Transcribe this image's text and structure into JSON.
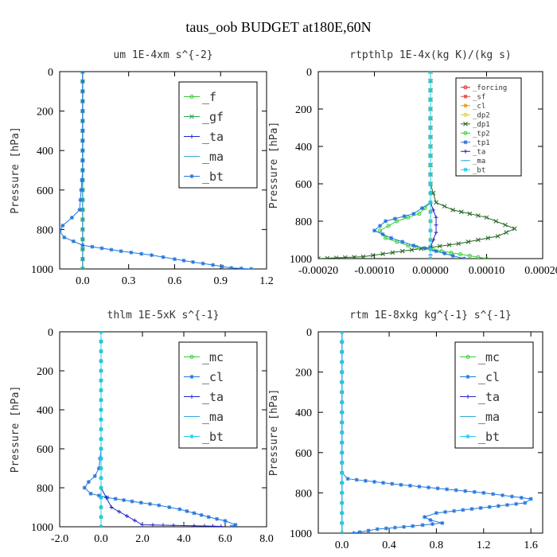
{
  "figure_title": "taus_oob  BUDGET at180E,60N",
  "chart_data": [
    {
      "type": "line",
      "title": "um  1E-4xm s^{-2}",
      "ylabel": "Pressure [hPa]",
      "xlim": [
        -0.15,
        1.2
      ],
      "ylim": [
        1000,
        0
      ],
      "xticks": [
        "0.0",
        "0.3",
        "0.6",
        "0.9",
        "1.2"
      ],
      "xtick_values": [
        0.0,
        0.3,
        0.6,
        0.9,
        1.2
      ],
      "yticks": [
        "0",
        "200",
        "400",
        "600",
        "800",
        "1000"
      ],
      "ytick_values": [
        0,
        200,
        400,
        600,
        800,
        1000
      ],
      "legend": "top-right",
      "legend_font": 15,
      "series": [
        {
          "name": "_f",
          "color": "#33cc33",
          "marker": "o",
          "x": [
            0,
            0,
            0,
            0,
            0,
            0,
            0,
            0,
            0,
            0,
            0
          ],
          "y": [
            0,
            100,
            200,
            300,
            400,
            500,
            600,
            700,
            800,
            900,
            1000
          ]
        },
        {
          "name": "_gf",
          "color": "#22aa55",
          "marker": "x",
          "x": [
            0,
            0,
            0,
            0,
            0,
            0,
            0,
            0,
            0,
            0,
            0
          ],
          "y": [
            0,
            100,
            200,
            300,
            400,
            500,
            600,
            700,
            800,
            900,
            1000
          ]
        },
        {
          "name": "_ta",
          "color": "#2222cc",
          "marker": "+",
          "x": [
            0,
            0,
            0,
            0,
            0,
            0,
            0,
            0,
            0,
            0,
            0
          ],
          "y": [
            0,
            100,
            200,
            300,
            400,
            500,
            600,
            700,
            800,
            900,
            1000
          ]
        },
        {
          "name": "_ma",
          "color": "#33aadd",
          "marker": "-",
          "x": [
            0,
            0,
            0,
            0,
            0,
            0,
            0,
            0,
            0,
            0,
            0
          ],
          "y": [
            0,
            100,
            200,
            300,
            400,
            500,
            600,
            700,
            800,
            900,
            1000
          ]
        },
        {
          "name": "_bt",
          "color": "#2277dd",
          "marker": "*",
          "x": [
            0,
            0,
            0,
            0,
            0,
            0,
            -0.01,
            -0.02,
            -0.07,
            -0.13,
            -0.15,
            -0.12,
            0.0,
            0.25,
            0.45,
            0.6,
            0.72,
            0.85,
            0.97,
            1.1
          ],
          "y": [
            0,
            100,
            200,
            300,
            400,
            500,
            600,
            700,
            740,
            780,
            810,
            840,
            880,
            910,
            930,
            950,
            965,
            980,
            995,
            1000
          ]
        }
      ]
    },
    {
      "type": "line",
      "title": "rtpthlp  1E-4x(kg K)/(kg s)",
      "ylabel": "Pressure [hPa]",
      "xlim": [
        -0.0002,
        0.0002
      ],
      "ylim": [
        1000,
        0
      ],
      "xticks": [
        "-0.00020",
        "-0.00010",
        "0.00000",
        "0.00010",
        "0.00020"
      ],
      "xtick_values": [
        -0.0002,
        -0.0001,
        0.0,
        0.0001,
        0.0002
      ],
      "yticks": [
        "0",
        "200",
        "400",
        "600",
        "800",
        "1000"
      ],
      "ytick_values": [
        0,
        200,
        400,
        600,
        800,
        1000
      ],
      "legend": "top-right",
      "legend_font": 9,
      "series": [
        {
          "name": "_forcing",
          "color": "#dd2222",
          "marker": "o",
          "x": [
            0,
            0,
            0,
            0,
            0,
            0,
            0,
            0,
            0,
            0,
            0
          ],
          "y": [
            0,
            100,
            200,
            300,
            400,
            500,
            600,
            700,
            800,
            900,
            1000
          ]
        },
        {
          "name": "_sf",
          "color": "#ee4444",
          "marker": "*",
          "x": [
            0,
            0,
            0,
            0,
            0,
            0,
            0,
            0,
            0,
            0,
            0
          ],
          "y": [
            0,
            100,
            200,
            300,
            400,
            500,
            600,
            700,
            800,
            900,
            1000
          ]
        },
        {
          "name": "_cl",
          "color": "#ee9922",
          "marker": "*",
          "x": [
            0,
            0,
            0,
            0,
            0,
            0,
            0,
            0,
            0,
            0,
            0
          ],
          "y": [
            0,
            100,
            200,
            300,
            400,
            500,
            600,
            700,
            800,
            900,
            1000
          ]
        },
        {
          "name": "_dp2",
          "color": "#ddcc22",
          "marker": "o",
          "x": [
            0,
            0,
            0,
            0,
            0,
            0,
            0,
            0,
            0,
            0,
            0
          ],
          "y": [
            0,
            100,
            200,
            300,
            400,
            500,
            600,
            700,
            800,
            900,
            1000
          ]
        },
        {
          "name": "_dp1",
          "color": "#226622",
          "marker": "x",
          "x": [
            0,
            0,
            0,
            0,
            0,
            0,
            0,
            1e-05,
            4e-05,
            0.0001,
            0.00015,
            0.00012,
            5e-05,
            -5e-05,
            -0.00012,
            -0.0002
          ],
          "y": [
            0,
            100,
            200,
            300,
            400,
            500,
            600,
            700,
            740,
            780,
            840,
            880,
            920,
            960,
            990,
            1000
          ]
        },
        {
          "name": "_tp2",
          "color": "#33cc33",
          "marker": "o",
          "x": [
            0,
            0,
            0,
            0,
            0,
            0,
            0,
            0,
            -2e-05,
            -6e-05,
            -9e-05,
            -8e-05,
            -4e-05,
            2e-05,
            7e-05,
            0.0001
          ],
          "y": [
            0,
            100,
            200,
            300,
            400,
            500,
            600,
            700,
            760,
            800,
            850,
            890,
            930,
            960,
            985,
            1000
          ]
        },
        {
          "name": "_tp1",
          "color": "#2277dd",
          "marker": "*",
          "x": [
            0,
            0,
            0,
            0,
            0,
            0,
            0,
            0,
            -3e-05,
            -8e-05,
            -0.0001,
            -7e-05,
            -3e-05,
            1e-05,
            4e-05,
            6e-05
          ],
          "y": [
            0,
            100,
            200,
            300,
            400,
            500,
            600,
            700,
            760,
            800,
            850,
            890,
            930,
            960,
            985,
            1000
          ]
        },
        {
          "name": "_ta",
          "color": "#2222cc",
          "marker": "+",
          "x": [
            0,
            0,
            0,
            0,
            0,
            0,
            0,
            0,
            1e-05,
            1e-05,
            5e-06,
            0,
            0,
            0
          ],
          "y": [
            0,
            100,
            200,
            300,
            400,
            500,
            600,
            700,
            780,
            860,
            900,
            940,
            980,
            1000
          ]
        },
        {
          "name": "_ma",
          "color": "#33aadd",
          "marker": "-",
          "x": [
            0,
            0,
            0,
            0,
            0,
            0,
            0,
            0,
            0,
            0,
            0
          ],
          "y": [
            0,
            100,
            200,
            300,
            400,
            500,
            600,
            700,
            800,
            900,
            1000
          ]
        },
        {
          "name": "_bt",
          "color": "#22ccee",
          "marker": "*",
          "x": [
            0,
            0,
            0,
            0,
            0,
            0,
            0,
            0,
            0,
            0,
            0
          ],
          "y": [
            0,
            100,
            200,
            300,
            400,
            500,
            600,
            700,
            800,
            900,
            1000
          ]
        }
      ]
    },
    {
      "type": "line",
      "title": "thlm  1E-5xK s^{-1}",
      "ylabel": "Pressure [hPa]",
      "xlim": [
        -2.0,
        8.0
      ],
      "ylim": [
        1000,
        0
      ],
      "xticks": [
        "-2.0",
        "0.0",
        "2.0",
        "4.0",
        "6.0",
        "8.0"
      ],
      "xtick_values": [
        -2.0,
        0.0,
        2.0,
        4.0,
        6.0,
        8.0
      ],
      "yticks": [
        "0",
        "200",
        "400",
        "600",
        "800",
        "1000"
      ],
      "ytick_values": [
        0,
        200,
        400,
        600,
        800,
        1000
      ],
      "legend": "top-right",
      "legend_font": 15,
      "series": [
        {
          "name": "_mc",
          "color": "#33cc33",
          "marker": "o",
          "x": [
            0,
            0,
            0,
            0,
            0,
            0,
            0,
            0,
            0,
            0,
            0
          ],
          "y": [
            0,
            100,
            200,
            300,
            400,
            500,
            600,
            700,
            800,
            900,
            1000
          ]
        },
        {
          "name": "_cl",
          "color": "#2277dd",
          "marker": "*",
          "x": [
            0,
            0,
            0,
            0,
            0,
            0,
            0,
            -0.1,
            -0.3,
            -0.6,
            -0.8,
            -0.5,
            0.3,
            1.5,
            2.8,
            3.8,
            4.5,
            5.2,
            6.0,
            6.5,
            6.3
          ],
          "y": [
            0,
            100,
            200,
            300,
            400,
            500,
            600,
            700,
            740,
            770,
            800,
            830,
            850,
            870,
            890,
            910,
            930,
            950,
            970,
            990,
            1000
          ]
        },
        {
          "name": "_ta",
          "color": "#2222cc",
          "marker": "+",
          "x": [
            0,
            0,
            0,
            0,
            0,
            0,
            0,
            0,
            0,
            0.5,
            2.0,
            3.5,
            5.0,
            5.8
          ],
          "y": [
            0,
            100,
            200,
            300,
            400,
            500,
            600,
            700,
            800,
            900,
            990,
            993,
            996,
            998
          ]
        },
        {
          "name": "_ma",
          "color": "#33aadd",
          "marker": "-",
          "x": [
            0,
            0,
            0,
            0,
            0,
            0,
            0,
            0,
            0,
            0,
            0
          ],
          "y": [
            0,
            100,
            200,
            300,
            400,
            500,
            600,
            700,
            800,
            900,
            1000
          ]
        },
        {
          "name": "_bt",
          "color": "#22ccee",
          "marker": "*",
          "x": [
            0,
            0,
            0,
            0,
            0,
            0,
            0,
            0,
            0,
            0,
            0
          ],
          "y": [
            0,
            100,
            200,
            300,
            400,
            500,
            600,
            700,
            800,
            900,
            1000
          ]
        }
      ]
    },
    {
      "type": "line",
      "title": "rtm  1E-8xkg kg^{-1} s^{-1}",
      "ylabel": "Pressure [hPa]",
      "xlim": [
        -0.2,
        1.7
      ],
      "ylim": [
        1000,
        0
      ],
      "xticks": [
        "0.0",
        "0.4",
        "0.8",
        "1.2",
        "1.6"
      ],
      "xtick_values": [
        0.0,
        0.4,
        0.8,
        1.2,
        1.6
      ],
      "yticks": [
        "0",
        "200",
        "400",
        "600",
        "800",
        "1000"
      ],
      "ytick_values": [
        0,
        200,
        400,
        600,
        800,
        1000
      ],
      "legend": "top-right",
      "legend_font": 15,
      "series": [
        {
          "name": "_mc",
          "color": "#33cc33",
          "marker": "o",
          "x": [
            0,
            0,
            0,
            0,
            0,
            0,
            0,
            0,
            0,
            0,
            0
          ],
          "y": [
            0,
            100,
            200,
            300,
            400,
            500,
            600,
            700,
            800,
            900,
            1000
          ]
        },
        {
          "name": "_cl",
          "color": "#2277dd",
          "marker": "*",
          "x": [
            0,
            0,
            0,
            0,
            0,
            0,
            0,
            0,
            0.05,
            0.5,
            1.2,
            1.6,
            1.55,
            1.1,
            0.8,
            0.7,
            0.75,
            0.85,
            0.6,
            0.3,
            0.15,
            0.1
          ],
          "y": [
            0,
            100,
            200,
            300,
            400,
            500,
            600,
            700,
            730,
            760,
            800,
            830,
            850,
            880,
            900,
            920,
            935,
            950,
            965,
            980,
            995,
            1000
          ]
        },
        {
          "name": "_ta",
          "color": "#2222cc",
          "marker": "+",
          "x": [
            0,
            0,
            0,
            0,
            0,
            0,
            0,
            0,
            0,
            0,
            0
          ],
          "y": [
            0,
            100,
            200,
            300,
            400,
            500,
            600,
            700,
            800,
            900,
            1000
          ]
        },
        {
          "name": "_ma",
          "color": "#33aadd",
          "marker": "-",
          "x": [
            0,
            0,
            0,
            0,
            0,
            0,
            0,
            0,
            0,
            0,
            0
          ],
          "y": [
            0,
            100,
            200,
            300,
            400,
            500,
            600,
            700,
            800,
            900,
            1000
          ]
        },
        {
          "name": "_bt",
          "color": "#22ccee",
          "marker": "*",
          "x": [
            0,
            0,
            0,
            0,
            0,
            0,
            0,
            0,
            0,
            0,
            0
          ],
          "y": [
            0,
            100,
            200,
            300,
            400,
            500,
            600,
            700,
            800,
            900,
            1000
          ]
        }
      ]
    }
  ]
}
